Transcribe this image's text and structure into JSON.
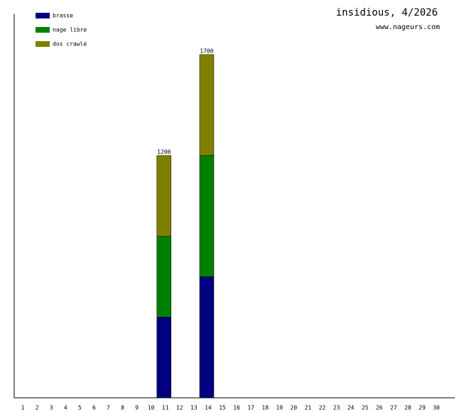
{
  "chart_data": {
    "type": "stacked_bar",
    "title": "insidious, 4/2026",
    "subtitle": "www.nageurs.com",
    "categories": [
      "1",
      "2",
      "3",
      "4",
      "5",
      "6",
      "7",
      "8",
      "9",
      "10",
      "11",
      "12",
      "13",
      "14",
      "15",
      "16",
      "17",
      "18",
      "19",
      "20",
      "21",
      "22",
      "23",
      "24",
      "25",
      "26",
      "27",
      "28",
      "29",
      "30"
    ],
    "series": [
      {
        "name": "brasse",
        "color": "#000080",
        "values": [
          0,
          0,
          0,
          0,
          0,
          0,
          0,
          0,
          0,
          0,
          400,
          0,
          0,
          600,
          0,
          0,
          0,
          0,
          0,
          0,
          0,
          0,
          0,
          0,
          0,
          0,
          0,
          0,
          0,
          0
        ]
      },
      {
        "name": "nage libre",
        "color": "#008000",
        "values": [
          0,
          0,
          0,
          0,
          0,
          0,
          0,
          0,
          0,
          0,
          400,
          0,
          0,
          600,
          0,
          0,
          0,
          0,
          0,
          0,
          0,
          0,
          0,
          0,
          0,
          0,
          0,
          0,
          0,
          0
        ]
      },
      {
        "name": "dos crawlé",
        "color": "#808000",
        "values": [
          0,
          0,
          0,
          0,
          0,
          0,
          0,
          0,
          0,
          0,
          400,
          0,
          0,
          500,
          0,
          0,
          0,
          0,
          0,
          0,
          0,
          0,
          0,
          0,
          0,
          0,
          0,
          0,
          0,
          0
        ]
      }
    ],
    "totals": [
      null,
      null,
      null,
      null,
      null,
      null,
      null,
      null,
      null,
      null,
      1200,
      null,
      null,
      1700,
      null,
      null,
      null,
      null,
      null,
      null,
      null,
      null,
      null,
      null,
      null,
      null,
      null,
      null,
      null,
      null
    ],
    "ylim": [
      0,
      1900
    ],
    "legend": "top-left"
  }
}
